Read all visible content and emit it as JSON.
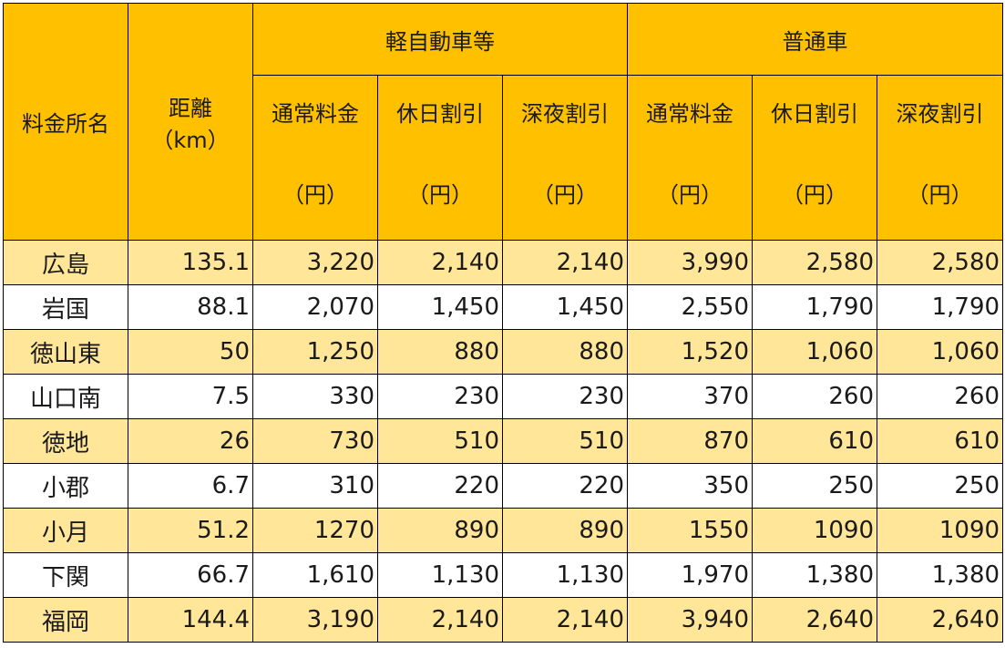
{
  "header": {
    "station": "料金所名",
    "distance_line1": "距離",
    "distance_line2": "（km）",
    "group_kei": "軽自動車等",
    "group_futsu": "普通車",
    "subcols": [
      {
        "line1": "通常料金",
        "line2": "（円）"
      },
      {
        "line1": "休日割引",
        "line2": "（円）"
      },
      {
        "line1": "深夜割引",
        "line2": "（円）"
      },
      {
        "line1": "通常料金",
        "line2": "（円）"
      },
      {
        "line1": "休日割引",
        "line2": "（円）"
      },
      {
        "line1": "深夜割引",
        "line2": "（円）"
      }
    ]
  },
  "rows": [
    {
      "name": "広島",
      "km": "135.1",
      "v": [
        "3,220",
        "2,140",
        "2,140",
        "3,990",
        "2,580",
        "2,580"
      ]
    },
    {
      "name": "岩国",
      "km": "88.1",
      "v": [
        "2,070",
        "1,450",
        "1,450",
        "2,550",
        "1,790",
        "1,790"
      ]
    },
    {
      "name": "徳山東",
      "km": "50",
      "v": [
        "1,250",
        "880",
        "880",
        "1,520",
        "1,060",
        "1,060"
      ]
    },
    {
      "name": "山口南",
      "km": "7.5",
      "v": [
        "330",
        "230",
        "230",
        "370",
        "260",
        "260"
      ]
    },
    {
      "name": "徳地",
      "km": "26",
      "v": [
        "730",
        "510",
        "510",
        "870",
        "610",
        "610"
      ]
    },
    {
      "name": "小郡",
      "km": "6.7",
      "v": [
        "310",
        "220",
        "220",
        "350",
        "250",
        "250"
      ]
    },
    {
      "name": "小月",
      "km": "51.2",
      "v": [
        "1270",
        "890",
        "890",
        "1550",
        "1090",
        "1090"
      ]
    },
    {
      "name": "下関",
      "km": "66.7",
      "v": [
        "1,610",
        "1,130",
        "1,130",
        "1,970",
        "1,380",
        "1,380"
      ]
    },
    {
      "name": "福岡",
      "km": "144.4",
      "v": [
        "3,190",
        "2,140",
        "2,140",
        "3,940",
        "2,640",
        "2,640"
      ]
    }
  ]
}
